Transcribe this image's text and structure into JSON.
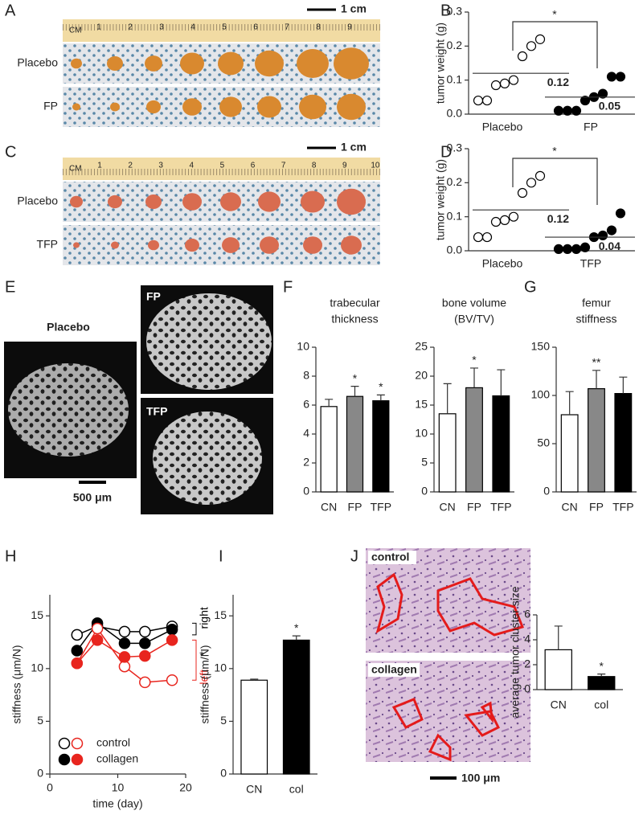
{
  "panel_labels": [
    "A",
    "B",
    "C",
    "D",
    "E",
    "F",
    "G",
    "H",
    "I",
    "J"
  ],
  "photos": {
    "A": {
      "scale": "1 cm",
      "ruler_unit": "CM",
      "ruler_numbers": [
        "1",
        "2",
        "3",
        "4",
        "5",
        "6",
        "7",
        "8",
        "9"
      ],
      "rows": [
        "Placebo",
        "FP"
      ]
    },
    "C": {
      "scale": "1 cm",
      "ruler_unit": "CM",
      "ruler_numbers": [
        "1",
        "2",
        "3",
        "4",
        "5",
        "6",
        "7",
        "8",
        "9",
        "10"
      ],
      "rows": [
        "Placebo",
        "TFP"
      ]
    },
    "E": {
      "renders": [
        "Placebo",
        "FP",
        "TFP"
      ],
      "scale": "500 μm"
    },
    "J": {
      "panels": [
        "control",
        "collagen"
      ],
      "scale": "100 μm"
    }
  },
  "chart_data": [
    {
      "type": "strip",
      "ylabel": "tumor weight (g)",
      "categories": [
        "Placebo",
        "FP"
      ],
      "groups": [
        {
          "values": [
            0.04,
            0.04,
            0.085,
            0.09,
            0.1,
            0.17,
            0.2,
            0.22
          ],
          "fill": "#ffffff",
          "mean": 0.12
        },
        {
          "values": [
            0.01,
            0.01,
            0.01,
            0.04,
            0.05,
            0.06,
            0.11,
            0.11
          ],
          "fill": "#000000",
          "mean": 0.05
        }
      ],
      "ylim": [
        0,
        0.3
      ],
      "yticks": [
        {
          "value": 0,
          "label": "0.0"
        },
        0.1,
        0.2,
        0.3
      ],
      "significance": "*"
    },
    {
      "type": "strip",
      "ylabel": "tumor weight (g)",
      "categories": [
        "Placebo",
        "TFP"
      ],
      "groups": [
        {
          "values": [
            0.04,
            0.04,
            0.085,
            0.09,
            0.1,
            0.17,
            0.2,
            0.22
          ],
          "fill": "#ffffff",
          "mean": 0.12
        },
        {
          "values": [
            0.005,
            0.005,
            0.005,
            0.01,
            0.04,
            0.045,
            0.06,
            0.11
          ],
          "fill": "#000000",
          "mean": 0.04
        }
      ],
      "ylim": [
        0,
        0.3
      ],
      "yticks": [
        {
          "value": 0,
          "label": "0.0"
        },
        0.1,
        0.2,
        0.3
      ],
      "significance": "*"
    },
    {
      "type": "bar",
      "title": [
        "trabecular",
        "thickness"
      ],
      "categories": [
        "CN",
        "FP",
        "TFP"
      ],
      "values": [
        5.9,
        6.6,
        6.3
      ],
      "errors": [
        0.5,
        0.7,
        0.4
      ],
      "colors": [
        "#ffffff",
        "#888888",
        "#000000"
      ],
      "stars": [
        null,
        "*",
        "*"
      ],
      "ylim": [
        0,
        10
      ],
      "yticks": [
        0,
        2,
        4,
        6,
        8,
        10
      ]
    },
    {
      "type": "bar",
      "title": [
        "bone volume",
        "(BV/TV)"
      ],
      "categories": [
        "CN",
        "FP",
        "TFP"
      ],
      "values": [
        13.5,
        18,
        16.6
      ],
      "errors": [
        5.2,
        3.4,
        4.5
      ],
      "colors": [
        "#ffffff",
        "#888888",
        "#000000"
      ],
      "stars": [
        null,
        "*",
        null
      ],
      "ylim": [
        0,
        25
      ],
      "yticks": [
        0,
        5,
        10,
        15,
        20,
        25
      ]
    },
    {
      "type": "bar",
      "title": [
        "femur",
        "stiffness"
      ],
      "categories": [
        "CN",
        "FP",
        "TFP"
      ],
      "values": [
        80,
        107,
        102
      ],
      "errors": [
        24,
        19,
        17
      ],
      "colors": [
        "#ffffff",
        "#888888",
        "#000000"
      ],
      "stars": [
        null,
        "**",
        null
      ],
      "ylim": [
        0,
        150
      ],
      "yticks": [
        0,
        50,
        100,
        150
      ]
    },
    {
      "type": "line",
      "xlabel": "time (day)",
      "ylabel": "stiffness (μm/N)",
      "x": [
        4,
        7,
        11,
        14,
        18
      ],
      "xlim": [
        0,
        20
      ],
      "xticks": [
        0,
        10,
        20
      ],
      "ylim": [
        0,
        17
      ],
      "yticks": [
        0,
        5,
        10,
        15
      ],
      "side_labels": [
        "right",
        "left"
      ],
      "side_colors": [
        "#000000",
        "#e8251e"
      ],
      "significance": "*",
      "series": [
        {
          "name": "control",
          "fill": "open",
          "right": [
            13.2,
            14.0,
            13.5,
            13.5,
            14.0
          ],
          "left": [
            10.5,
            13.8,
            10.2,
            8.7,
            8.9
          ]
        },
        {
          "name": "collagen",
          "fill": "filled",
          "right": [
            11.7,
            14.3,
            12.4,
            12.4,
            13.7
          ],
          "left": [
            10.5,
            12.7,
            11.1,
            11.2,
            12.7
          ]
        }
      ]
    },
    {
      "type": "bar",
      "ylabel": "stiffness (μm/N)",
      "categories": [
        "CN",
        "col"
      ],
      "values": [
        8.9,
        12.7
      ],
      "errors": [
        0.1,
        0.4
      ],
      "colors": [
        "#ffffff",
        "#000000"
      ],
      "stars": [
        null,
        "*"
      ],
      "ylim": [
        0,
        17
      ],
      "yticks": [
        0,
        5,
        10,
        15
      ]
    },
    {
      "type": "bar",
      "ylabel": "average tumor cluster size",
      "categories": [
        "CN",
        "col"
      ],
      "values": [
        3.2,
        1.05
      ],
      "errors": [
        1.9,
        0.2
      ],
      "colors": [
        "#ffffff",
        "#000000"
      ],
      "stars": [
        null,
        "*"
      ],
      "ylim": [
        0,
        6
      ],
      "yticks": [
        0,
        2,
        4,
        6
      ]
    }
  ]
}
